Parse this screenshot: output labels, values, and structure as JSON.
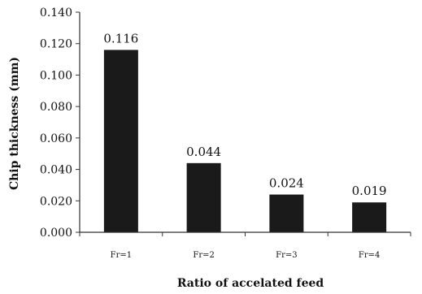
{
  "chart_data": {
    "type": "bar",
    "categories": [
      "Fr=1",
      "Fr=2",
      "Fr=3",
      "Fr=4"
    ],
    "values": [
      0.116,
      0.044,
      0.024,
      0.019
    ],
    "data_labels": [
      "0.116",
      "0.044",
      "0.024",
      "0.019"
    ],
    "title": "",
    "xlabel": "Ratio of accelated feed",
    "ylabel": "Chip thickness (mm)",
    "ylim": [
      0,
      0.14
    ],
    "yticks": [
      0.0,
      0.02,
      0.04,
      0.06,
      0.08,
      0.1,
      0.12,
      0.14
    ],
    "ytick_labels": [
      "0.000",
      "0.020",
      "0.040",
      "0.060",
      "0.080",
      "0.100",
      "0.120",
      "0.140"
    ],
    "grid": false,
    "legend": "none",
    "bar_color": "#1a1a1a"
  }
}
